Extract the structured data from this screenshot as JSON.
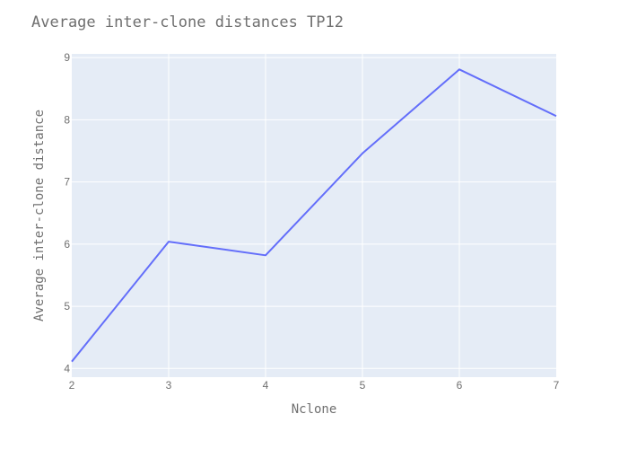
{
  "chart_data": {
    "type": "line",
    "title": "Average inter-clone distances TP12",
    "xlabel": "Nclone",
    "ylabel": "Average inter-clone distance",
    "x": [
      2,
      3,
      4,
      5,
      6,
      7
    ],
    "series": [
      {
        "values": [
          4.11,
          6.04,
          5.82,
          7.46,
          8.81,
          8.06
        ]
      }
    ],
    "xlim": [
      2,
      7
    ],
    "ylim": [
      3.86,
      9.06
    ],
    "xticks": [
      2,
      3,
      4,
      5,
      6,
      7
    ],
    "yticks": [
      4,
      5,
      6,
      7,
      8,
      9
    ],
    "xtick_labels": [
      "2",
      "3",
      "4",
      "5",
      "6",
      "7"
    ],
    "ytick_labels": [
      "4",
      "5",
      "6",
      "7",
      "8",
      "9"
    ],
    "grid": true,
    "legend": "none",
    "colors": {
      "plot_background": "#e5ecf6",
      "grid": "#ffffff",
      "line": "#636efa",
      "text": "#6f6f6f"
    }
  }
}
